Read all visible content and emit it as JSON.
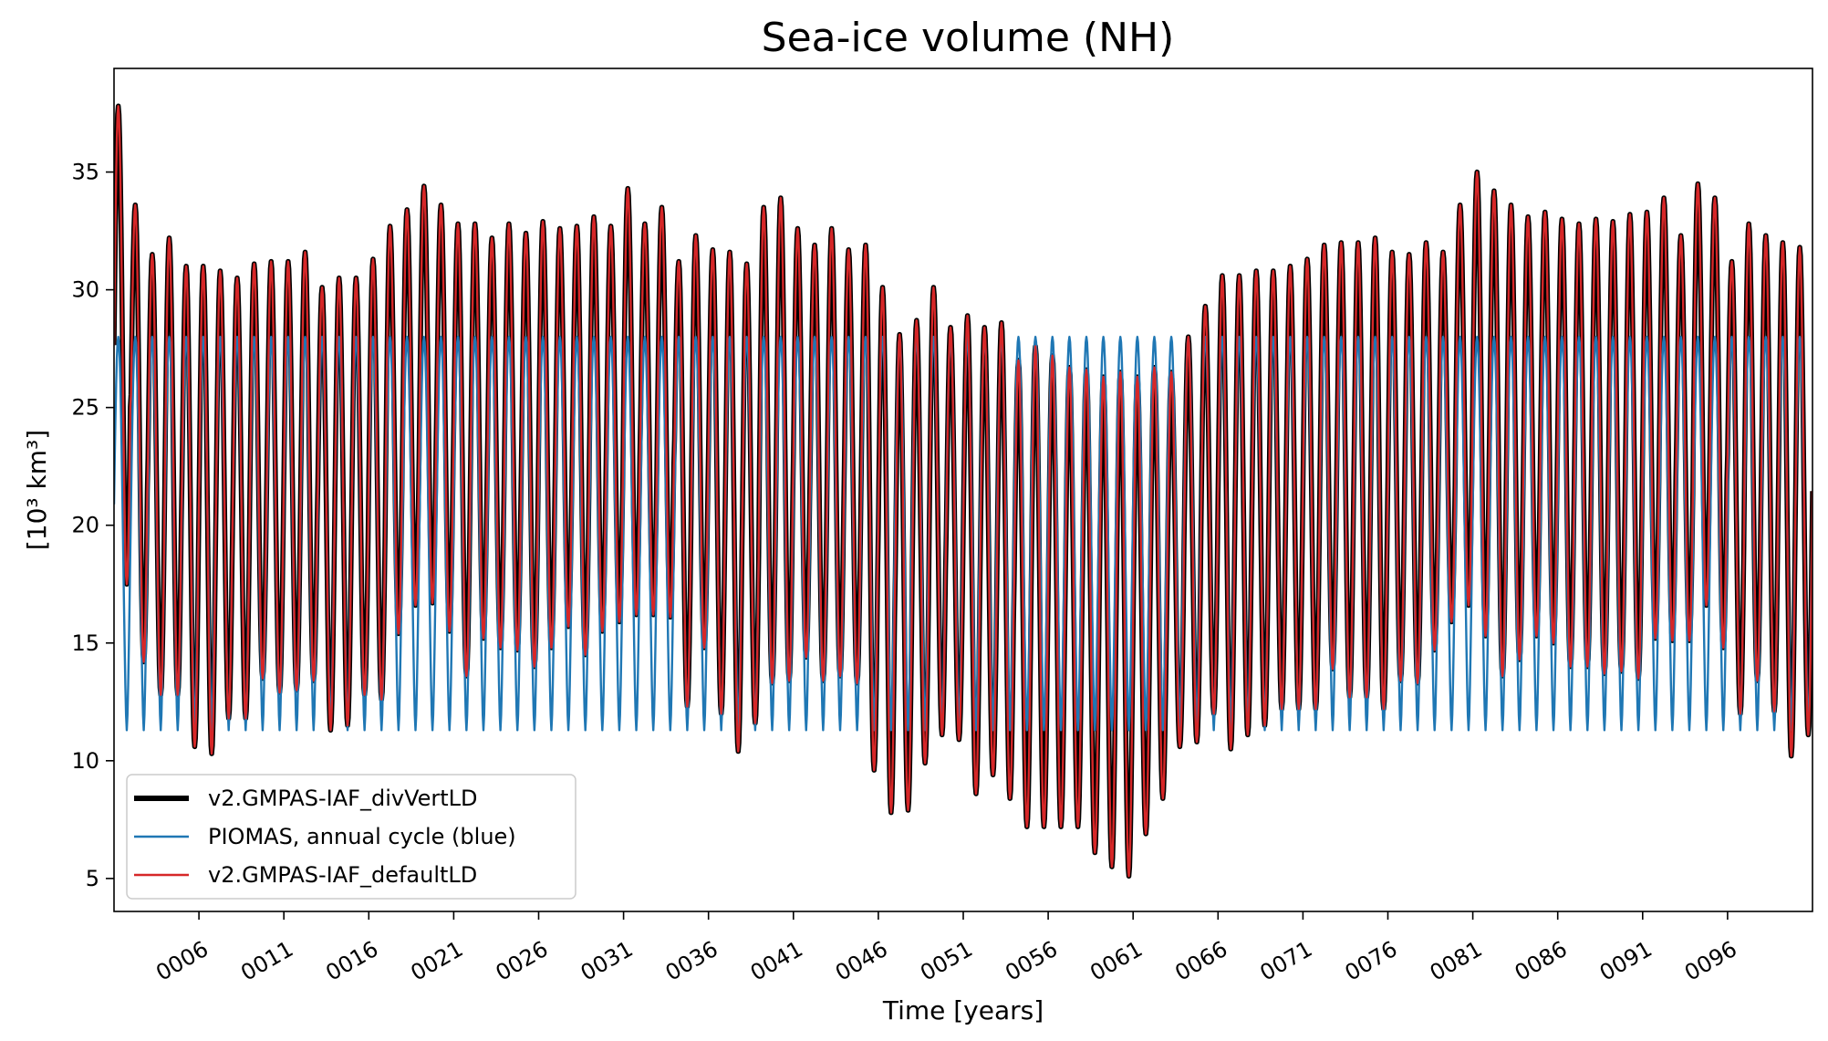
{
  "chart_data": {
    "type": "line",
    "title": "Sea-ice volume (NH)",
    "xlabel": "Time [years]",
    "ylabel": "[10³ km³]",
    "xlim": [
      1.0,
      101.0
    ],
    "ylim": [
      3.6,
      39.4
    ],
    "yticks": [
      5,
      10,
      15,
      20,
      25,
      30,
      35
    ],
    "xticks": [
      6,
      11,
      16,
      21,
      26,
      31,
      36,
      41,
      46,
      51,
      56,
      61,
      66,
      71,
      76,
      81,
      86,
      91,
      96
    ],
    "xtick_labels": [
      "0006",
      "0011",
      "0016",
      "0021",
      "0026",
      "0031",
      "0036",
      "0041",
      "0046",
      "0051",
      "0056",
      "0061",
      "0066",
      "0071",
      "0076",
      "0081",
      "0086",
      "0091",
      "0096"
    ],
    "grid": false,
    "legend_position": "lower-left",
    "years": [
      1,
      2,
      3,
      4,
      5,
      6,
      7,
      8,
      9,
      10,
      11,
      12,
      13,
      14,
      15,
      16,
      17,
      18,
      19,
      20,
      21,
      22,
      23,
      24,
      25,
      26,
      27,
      28,
      29,
      30,
      31,
      32,
      33,
      34,
      35,
      36,
      37,
      38,
      39,
      40,
      41,
      42,
      43,
      44,
      45,
      46,
      47,
      48,
      49,
      50,
      51,
      52,
      53,
      54,
      55,
      56,
      57,
      58,
      59,
      60,
      61,
      62,
      63,
      64,
      65,
      66,
      67,
      68,
      69,
      70,
      71,
      72,
      73,
      74,
      75,
      76,
      77,
      78,
      79,
      80,
      81,
      82,
      83,
      84,
      85,
      86,
      87,
      88,
      89,
      90,
      91,
      92,
      93,
      94,
      95,
      96,
      97,
      98,
      99,
      100
    ],
    "series": [
      {
        "name": "v2.GMPAS-IAF_divVertLD",
        "color": "#000000",
        "annual_max": [
          37.8,
          33.6,
          31.5,
          32.2,
          31.0,
          31.0,
          30.8,
          30.5,
          31.1,
          31.2,
          31.2,
          31.6,
          30.1,
          30.5,
          30.5,
          31.3,
          32.7,
          33.4,
          34.4,
          33.6,
          32.8,
          32.8,
          32.2,
          32.8,
          32.4,
          32.9,
          32.6,
          32.7,
          33.1,
          32.7,
          34.3,
          32.8,
          33.5,
          31.2,
          32.3,
          31.7,
          31.6,
          31.1,
          33.5,
          33.9,
          32.6,
          31.9,
          32.6,
          31.7,
          31.9,
          30.1,
          28.1,
          28.7,
          30.1,
          28.4,
          28.9,
          28.4,
          28.6,
          27.0,
          27.6,
          27.2,
          26.7,
          26.6,
          26.3,
          26.5,
          26.3,
          26.7,
          26.5,
          28.0,
          29.3,
          30.6,
          30.6,
          30.8,
          30.8,
          31.0,
          31.3,
          31.9,
          32.0,
          32.0,
          32.2,
          31.6,
          31.5,
          32.0,
          31.6,
          33.6,
          35.0,
          34.2,
          33.6,
          33.1,
          33.3,
          33.0,
          32.8,
          33.0,
          32.9,
          33.2,
          33.3,
          33.9,
          32.3,
          34.5,
          33.9,
          31.2,
          32.8,
          32.3,
          32.0,
          31.8
        ],
        "annual_min": [
          17.5,
          14.2,
          12.8,
          12.8,
          10.6,
          10.3,
          11.8,
          11.8,
          13.5,
          12.9,
          13.0,
          13.4,
          11.3,
          11.5,
          12.8,
          12.6,
          15.4,
          16.6,
          16.7,
          15.5,
          13.6,
          15.2,
          14.8,
          14.7,
          14.0,
          14.8,
          15.7,
          14.5,
          15.5,
          15.9,
          16.2,
          16.2,
          16.1,
          12.3,
          14.8,
          12.0,
          10.4,
          11.6,
          13.3,
          13.4,
          14.4,
          13.4,
          13.6,
          13.3,
          9.6,
          7.8,
          7.9,
          9.9,
          11.1,
          10.9,
          8.6,
          9.4,
          8.4,
          7.2,
          7.2,
          7.2,
          7.2,
          6.1,
          5.5,
          5.1,
          6.9,
          8.4,
          10.6,
          10.8,
          12.0,
          10.5,
          11.1,
          11.5,
          12.2,
          12.2,
          12.2,
          13.9,
          12.7,
          12.7,
          12.2,
          13.4,
          13.3,
          14.7,
          15.9,
          16.6,
          15.3,
          13.6,
          14.3,
          15.3,
          15.0,
          14.0,
          14.0,
          13.7,
          13.8,
          13.5,
          15.2,
          15.1,
          15.1,
          16.6,
          14.8,
          12.0,
          13.4,
          12.1,
          10.2,
          11.1
        ]
      },
      {
        "name": "PIOMAS, annual cycle (blue)",
        "color": "#1f77b4",
        "annual_max": 28.0,
        "annual_min": 11.3
      },
      {
        "name": "v2.GMPAS-IAF_defaultLD",
        "color": "#d62728"
      }
    ]
  }
}
